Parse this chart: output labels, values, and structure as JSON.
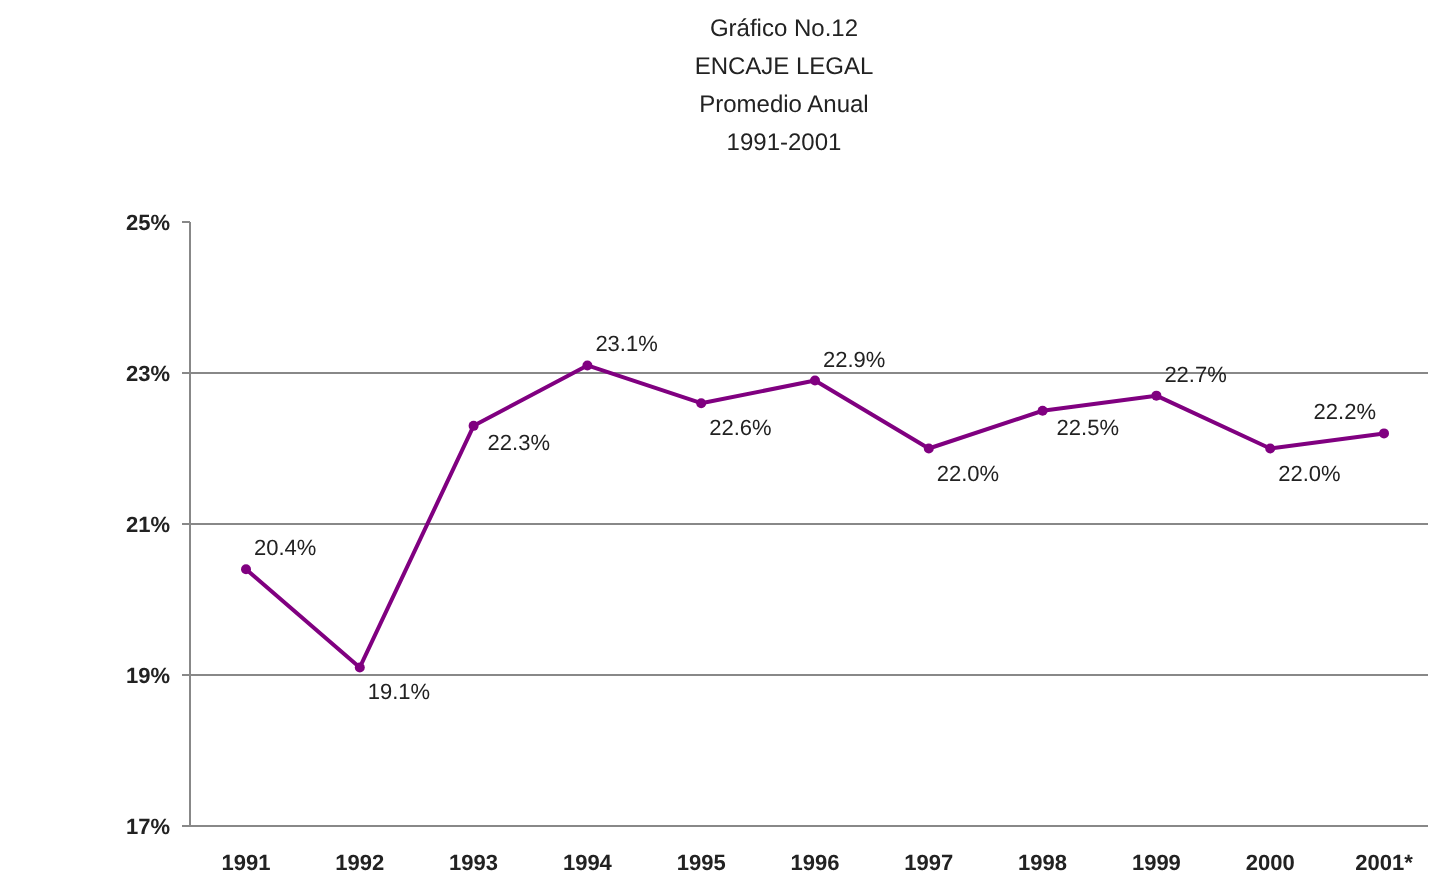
{
  "chart_data": {
    "type": "line",
    "title": "Gráfico No.12\nENCAJE LEGAL\nPromedio Anual\n1991-2001",
    "categories": [
      "1991",
      "1992",
      "1993",
      "1994",
      "1995",
      "1996",
      "1997",
      "1998",
      "1999",
      "2000",
      "2001*"
    ],
    "series": [
      {
        "color": "#800080",
        "values": [
          20.4,
          19.1,
          22.3,
          23.1,
          22.6,
          22.9,
          22.0,
          22.5,
          22.7,
          22.0,
          22.2
        ],
        "value_labels": [
          "20.4%",
          "19.1%",
          "22.3%",
          "23.1%",
          "22.6%",
          "22.9%",
          "22.0%",
          "22.5%",
          "22.7%",
          "22.0%",
          "22.2%"
        ]
      }
    ],
    "ylim": [
      17,
      25
    ],
    "yticks": [
      {
        "value": 17,
        "label": "17%"
      },
      {
        "value": 19,
        "label": "19%"
      },
      {
        "value": 21,
        "label": "21%"
      },
      {
        "value": 23,
        "label": "23%"
      },
      {
        "value": 25,
        "label": "25%"
      }
    ],
    "grid": "y",
    "marker": "circle",
    "line_style": "solid"
  }
}
